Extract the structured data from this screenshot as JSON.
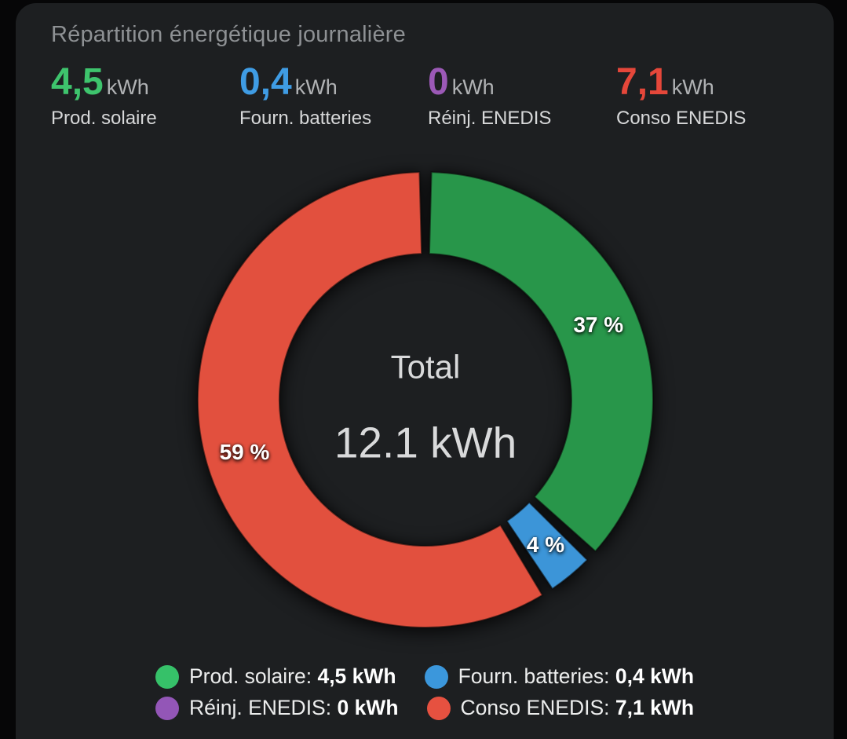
{
  "card": {
    "title": "Répartition énergétique journalière"
  },
  "stats": [
    {
      "value": "4,5",
      "unit": "kWh",
      "label": "Prod. solaire",
      "color": "#3ec46d"
    },
    {
      "value": "0,4",
      "unit": "kWh",
      "label": "Fourn. batteries",
      "color": "#3f9ce4"
    },
    {
      "value": "0",
      "unit": "kWh",
      "label": "Réinj. ENEDIS",
      "color": "#9b59b6"
    },
    {
      "value": "7,1",
      "unit": "kWh",
      "label": "Conso ENEDIS",
      "color": "#e5473a"
    }
  ],
  "chart_data": {
    "type": "pie",
    "variant": "donut",
    "title": "Répartition énergétique journalière",
    "unit": "kWh",
    "center_label": "Total",
    "center_value": "12.1 kWh",
    "start_angle_deg": 0,
    "clockwise": true,
    "gap_deg": 3,
    "segments": [
      {
        "label": "Prod. solaire",
        "value": 4.5,
        "percent": 37,
        "percent_label": "37 %",
        "color": "#28964a"
      },
      {
        "label": "Fourn. batteries",
        "value": 0.4,
        "percent": 4,
        "percent_label": "4 %",
        "color": "#3c95d8"
      },
      {
        "label": "Conso ENEDIS",
        "value": 7.1,
        "percent": 59,
        "percent_label": "59 %",
        "color": "#e2503e"
      }
    ],
    "hidden_segments": [
      {
        "label": "Réinj. ENEDIS",
        "value": 0,
        "percent": 0,
        "color": "#9b59b6"
      }
    ]
  },
  "legend": [
    {
      "label": "Prod. solaire:",
      "value": "4,5 kWh",
      "color": "#36c169"
    },
    {
      "label": "Fourn. batteries:",
      "value": "0,4 kWh",
      "color": "#3b97dc"
    },
    {
      "label": "Réinj. ENEDIS:",
      "value": "0 kWh",
      "color": "#9356b7"
    },
    {
      "label": "Conso ENEDIS:",
      "value": "7,1 kWh",
      "color": "#e65140"
    }
  ]
}
